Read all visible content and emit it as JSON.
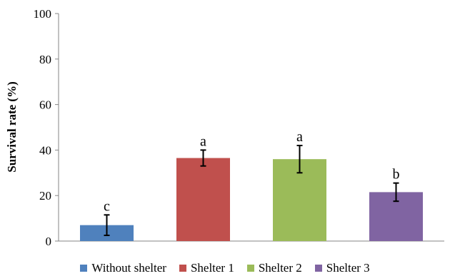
{
  "chart_data": {
    "type": "bar",
    "title": "",
    "xlabel": "",
    "ylabel": "Survival rate (%)",
    "ylim": [
      0,
      100
    ],
    "yticks": [
      "0",
      "20",
      "40",
      "60",
      "80",
      "100"
    ],
    "grid": false,
    "legend_position": "bottom",
    "categories": [
      "Without shelter",
      "Shelter 1",
      "Shelter 2",
      "Shelter 3"
    ],
    "values": [
      7,
      36.5,
      36,
      21.5
    ],
    "errors": [
      4.5,
      3.5,
      6,
      4
    ],
    "significance": [
      "c",
      "a",
      "a",
      "b"
    ],
    "colors": [
      "#4F81BD",
      "#C0504D",
      "#9BBB59",
      "#8064A2"
    ]
  }
}
